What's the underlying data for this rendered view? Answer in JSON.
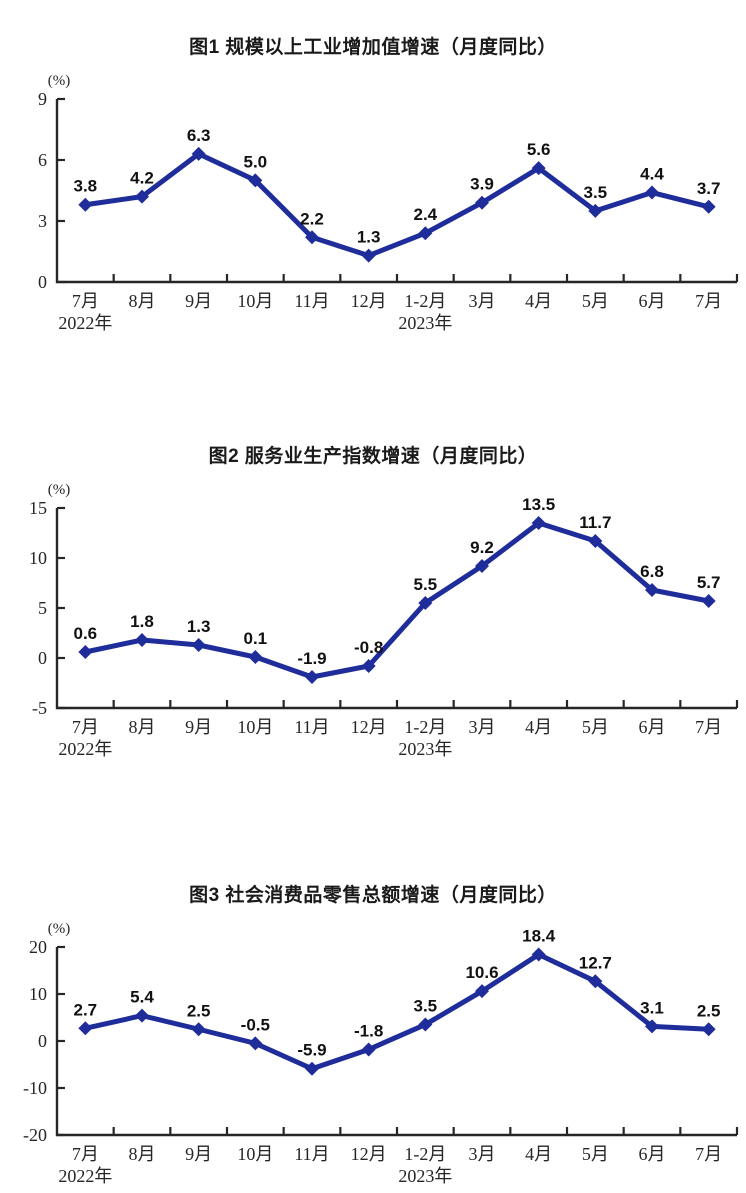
{
  "styles": {
    "background": "#ffffff",
    "axis_color": "#262626",
    "data_label_color": "#111111",
    "line_color": "#1f2d9b"
  },
  "chart_data": [
    {
      "type": "line",
      "title": "图1  规模以上工业增加值增速（月度同比）",
      "ylabel": "(%)",
      "xlabel": "",
      "grid": false,
      "legend": false,
      "marker": "diamond",
      "line_color": "#1f2d9b",
      "categories": [
        "7月",
        "8月",
        "9月",
        "10月",
        "11月",
        "12月",
        "1-2月",
        "3月",
        "4月",
        "5月",
        "6月",
        "7月"
      ],
      "category_year_notes": [
        {
          "index": 0,
          "text": "2022年"
        },
        {
          "index": 6,
          "text": "2023年"
        }
      ],
      "values": [
        3.8,
        4.2,
        6.3,
        5.0,
        2.2,
        1.3,
        2.4,
        3.9,
        5.6,
        3.5,
        4.4,
        3.7
      ],
      "point_labels": [
        "3.8",
        "4.2",
        "6.3",
        "5.0",
        "2.2",
        "1.3",
        "2.4",
        "3.9",
        "5.6",
        "3.5",
        "4.4",
        "3.7"
      ],
      "y_ticks": [
        0,
        3,
        6,
        9
      ],
      "ylim": [
        0,
        9
      ]
    },
    {
      "type": "line",
      "title": "图2  服务业生产指数增速（月度同比）",
      "ylabel": "(%)",
      "xlabel": "",
      "grid": false,
      "legend": false,
      "marker": "diamond",
      "line_color": "#1f2d9b",
      "categories": [
        "7月",
        "8月",
        "9月",
        "10月",
        "11月",
        "12月",
        "1-2月",
        "3月",
        "4月",
        "5月",
        "6月",
        "7月"
      ],
      "category_year_notes": [
        {
          "index": 0,
          "text": "2022年"
        },
        {
          "index": 6,
          "text": "2023年"
        }
      ],
      "values": [
        0.6,
        1.8,
        1.3,
        0.1,
        -1.9,
        -0.8,
        5.5,
        9.2,
        13.5,
        11.7,
        6.8,
        5.7
      ],
      "point_labels": [
        "0.6",
        "1.8",
        "1.3",
        "0.1",
        "-1.9",
        "-0.8",
        "5.5",
        "9.2",
        "13.5",
        "11.7",
        "6.8",
        "5.7"
      ],
      "y_ticks": [
        -5,
        0,
        5,
        10,
        15
      ],
      "ylim": [
        -5,
        15
      ]
    },
    {
      "type": "line",
      "title": "图3  社会消费品零售总额增速（月度同比）",
      "ylabel": "(%)",
      "xlabel": "",
      "grid": false,
      "legend": false,
      "marker": "diamond",
      "line_color": "#1f2d9b",
      "categories": [
        "7月",
        "8月",
        "9月",
        "10月",
        "11月",
        "12月",
        "1-2月",
        "3月",
        "4月",
        "5月",
        "6月",
        "7月"
      ],
      "category_year_notes": [
        {
          "index": 0,
          "text": "2022年"
        },
        {
          "index": 6,
          "text": "2023年"
        }
      ],
      "values": [
        2.7,
        5.4,
        2.5,
        -0.5,
        -5.9,
        -1.8,
        3.5,
        10.6,
        18.4,
        12.7,
        3.1,
        2.5
      ],
      "point_labels": [
        "2.7",
        "5.4",
        "2.5",
        "-0.5",
        "-5.9",
        "-1.8",
        "3.5",
        "10.6",
        "18.4",
        "12.7",
        "3.1",
        "2.5"
      ],
      "y_ticks": [
        -20,
        -10,
        0,
        10,
        20
      ],
      "ylim": [
        -20,
        20
      ]
    }
  ]
}
